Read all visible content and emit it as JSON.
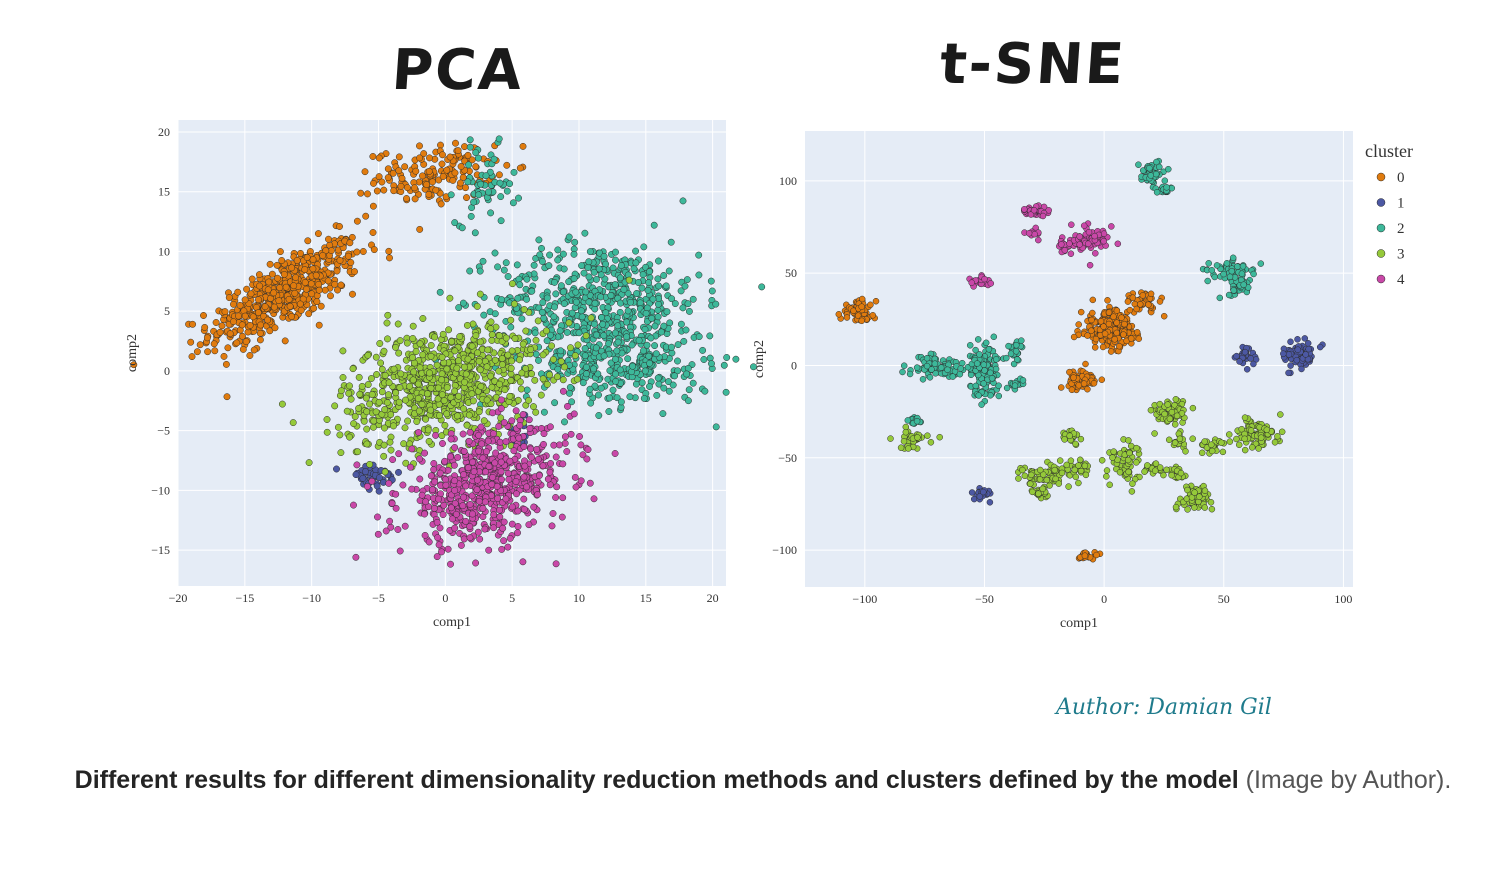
{
  "titles": {
    "pca": "PCA",
    "tsne": "t-SNE"
  },
  "author": "Author: Damian Gil",
  "caption": {
    "bold": "Different results for different dimensionality reduction methods and clusters defined by the model",
    "rest": " (Image by Author)."
  },
  "colors": {
    "plot_bg": "#e5ecf6",
    "grid": "#ffffff",
    "cluster_0": "#e07b0e",
    "cluster_1": "#4c58a3",
    "cluster_2": "#3db89a",
    "cluster_3": "#95c93a",
    "cluster_4": "#c948a8"
  },
  "chart_data": [
    {
      "type": "scatter",
      "title": "PCA",
      "xlabel": "comp1",
      "ylabel": "comp2",
      "xlim": [
        -20,
        21
      ],
      "ylim": [
        -18,
        21
      ],
      "xticks": [
        -20,
        -15,
        -10,
        -5,
        0,
        5,
        10,
        15,
        20
      ],
      "yticks": [
        -15,
        -10,
        -5,
        0,
        5,
        10,
        15,
        20
      ],
      "xtick_labels": [
        "−20",
        "−15",
        "−10",
        "−5",
        "0",
        "5",
        "10",
        "15",
        "20"
      ],
      "ytick_labels": [
        "−15",
        "−10",
        "−5",
        "0",
        "5",
        "10",
        "15",
        "20"
      ],
      "series": [
        {
          "name": "0",
          "color": "#e07b0e",
          "clusters": [
            {
              "cx": -12,
              "cy": 6.5,
              "sx": 2.8,
              "sy": 2.2,
              "n": 520,
              "rho": 0.75
            },
            {
              "cx": -0.8,
              "cy": 16.5,
              "sx": 2.2,
              "sy": 1.2,
              "n": 160,
              "rho": 0.2
            }
          ]
        },
        {
          "name": "1",
          "color": "#4c58a3",
          "clusters": [
            {
              "cx": -5.5,
              "cy": -9,
              "sx": 1.1,
              "sy": 0.7,
              "n": 40,
              "rho": 0
            },
            {
              "cx": 5.5,
              "cy": -5,
              "sx": 0.6,
              "sy": 0.6,
              "n": 12,
              "rho": 0
            }
          ]
        },
        {
          "name": "2",
          "color": "#3db89a",
          "clusters": [
            {
              "cx": 3,
              "cy": 15.5,
              "sx": 1.1,
              "sy": 1.6,
              "n": 60,
              "rho": 0
            },
            {
              "cx": 11.5,
              "cy": 6,
              "sx": 3.8,
              "sy": 2.4,
              "n": 520,
              "rho": 0
            },
            {
              "cx": 13,
              "cy": 0.5,
              "sx": 3.5,
              "sy": 1.8,
              "n": 300,
              "rho": 0
            }
          ]
        },
        {
          "name": "3",
          "color": "#95c93a",
          "clusters": [
            {
              "cx": 0,
              "cy": -1,
              "sx": 3.8,
              "sy": 2.6,
              "n": 780,
              "rho": 0.35
            }
          ]
        },
        {
          "name": "4",
          "color": "#c948a8",
          "clusters": [
            {
              "cx": 3,
              "cy": -9.5,
              "sx": 3.2,
              "sy": 2.4,
              "n": 640,
              "rho": 0.3
            }
          ]
        }
      ]
    },
    {
      "type": "scatter",
      "title": "t-SNE",
      "xlabel": "comp1",
      "ylabel": "comp2",
      "xlim": [
        -125,
        104
      ],
      "ylim": [
        -120,
        127
      ],
      "xticks": [
        -100,
        -50,
        0,
        50,
        100
      ],
      "yticks": [
        -100,
        -50,
        0,
        50,
        100
      ],
      "xtick_labels": [
        "−100",
        "−50",
        "0",
        "50",
        "100"
      ],
      "ytick_labels": [
        "−100",
        "−50",
        "0",
        "50",
        "100"
      ],
      "legend": {
        "title": "cluster",
        "entries": [
          "0",
          "1",
          "2",
          "3",
          "4"
        ],
        "position": "top-right"
      },
      "series": [
        {
          "name": "0",
          "color": "#e07b0e",
          "clusters": [
            {
              "cx": -103,
              "cy": 29,
              "sx": 3.5,
              "sy": 3,
              "n": 60,
              "rho": 0
            },
            {
              "cx": 3,
              "cy": 20,
              "sx": 6,
              "sy": 5,
              "n": 220,
              "rho": 0
            },
            {
              "cx": -10,
              "cy": -8,
              "sx": 3.5,
              "sy": 2.5,
              "n": 70,
              "rho": 0
            },
            {
              "cx": 17,
              "cy": 35,
              "sx": 3,
              "sy": 2.5,
              "n": 40,
              "rho": 0
            },
            {
              "cx": -7,
              "cy": -103,
              "sx": 2,
              "sy": 1.5,
              "n": 20,
              "rho": 0
            }
          ]
        },
        {
          "name": "1",
          "color": "#4c58a3",
          "clusters": [
            {
              "cx": 82,
              "cy": 6,
              "sx": 3.5,
              "sy": 3.5,
              "n": 80,
              "rho": 0
            },
            {
              "cx": 60,
              "cy": 5,
              "sx": 2,
              "sy": 2.5,
              "n": 30,
              "rho": 0
            },
            {
              "cx": -51,
              "cy": -70,
              "sx": 2,
              "sy": 2,
              "n": 20,
              "rho": 0
            }
          ]
        },
        {
          "name": "2",
          "color": "#3db89a",
          "clusters": [
            {
              "cx": 20,
              "cy": 104,
              "sx": 3,
              "sy": 3,
              "n": 40,
              "rho": 0
            },
            {
              "cx": 25,
              "cy": 95,
              "sx": 2,
              "sy": 1.5,
              "n": 15,
              "rho": 0
            },
            {
              "cx": 54,
              "cy": 52,
              "sx": 5,
              "sy": 3,
              "n": 50,
              "rho": 0
            },
            {
              "cx": 56,
              "cy": 42,
              "sx": 3,
              "sy": 2.5,
              "n": 30,
              "rho": 0
            },
            {
              "cx": -50,
              "cy": -5,
              "sx": 3,
              "sy": 8,
              "n": 120,
              "rho": 0
            },
            {
              "cx": -70,
              "cy": -1,
              "sx": 6,
              "sy": 3,
              "n": 90,
              "rho": 0
            },
            {
              "cx": -52,
              "cy": 2,
              "sx": 2,
              "sy": 2,
              "n": 25,
              "rho": 0
            },
            {
              "cx": -37,
              "cy": 8,
              "sx": 1.5,
              "sy": 3,
              "n": 25,
              "rho": 0
            },
            {
              "cx": -37,
              "cy": -10,
              "sx": 2,
              "sy": 1.5,
              "n": 15,
              "rho": 0
            },
            {
              "cx": -78,
              "cy": -30,
              "sx": 2,
              "sy": 1.5,
              "n": 15,
              "rho": 0
            }
          ]
        },
        {
          "name": "3",
          "color": "#95c93a",
          "clusters": [
            {
              "cx": -80,
              "cy": -40,
              "sx": 3,
              "sy": 2.5,
              "n": 35,
              "rho": 0
            },
            {
              "cx": -26,
              "cy": -60,
              "sx": 5,
              "sy": 3,
              "n": 60,
              "rho": 0
            },
            {
              "cx": -27,
              "cy": -68,
              "sx": 3,
              "sy": 2,
              "n": 20,
              "rho": 0
            },
            {
              "cx": -14,
              "cy": -38,
              "sx": 2,
              "sy": 2,
              "n": 20,
              "rho": 0
            },
            {
              "cx": -12,
              "cy": -56,
              "sx": 3,
              "sy": 2.5,
              "n": 30,
              "rho": 0
            },
            {
              "cx": 8,
              "cy": -52,
              "sx": 3,
              "sy": 5,
              "n": 60,
              "rho": 0
            },
            {
              "cx": 28,
              "cy": -25,
              "sx": 3.5,
              "sy": 4,
              "n": 70,
              "rho": 0
            },
            {
              "cx": 37,
              "cy": -72,
              "sx": 3.5,
              "sy": 4,
              "n": 70,
              "rho": 0
            },
            {
              "cx": 63,
              "cy": -37,
              "sx": 5,
              "sy": 4,
              "n": 80,
              "rho": 0
            },
            {
              "cx": 45,
              "cy": -44,
              "sx": 3,
              "sy": 2,
              "n": 30,
              "rho": 0
            },
            {
              "cx": 30,
              "cy": -58,
              "sx": 2,
              "sy": 2,
              "n": 20,
              "rho": 0
            },
            {
              "cx": 20,
              "cy": -56,
              "sx": 2,
              "sy": 1.5,
              "n": 15,
              "rho": 0
            },
            {
              "cx": 32,
              "cy": -42,
              "sx": 2,
              "sy": 2,
              "n": 15,
              "rho": 0
            }
          ]
        },
        {
          "name": "4",
          "color": "#c948a8",
          "clusters": [
            {
              "cx": -28,
              "cy": 84,
              "sx": 3,
              "sy": 2,
              "n": 30,
              "rho": 0
            },
            {
              "cx": -30,
              "cy": 72,
              "sx": 1.5,
              "sy": 1.5,
              "n": 12,
              "rho": 0
            },
            {
              "cx": -15,
              "cy": 65,
              "sx": 3,
              "sy": 2,
              "n": 20,
              "rho": 0
            },
            {
              "cx": -6,
              "cy": 68,
              "sx": 4,
              "sy": 4,
              "n": 70,
              "rho": 0
            },
            {
              "cx": -52,
              "cy": 46,
              "sx": 2,
              "sy": 2,
              "n": 20,
              "rho": 0
            }
          ]
        }
      ]
    }
  ]
}
